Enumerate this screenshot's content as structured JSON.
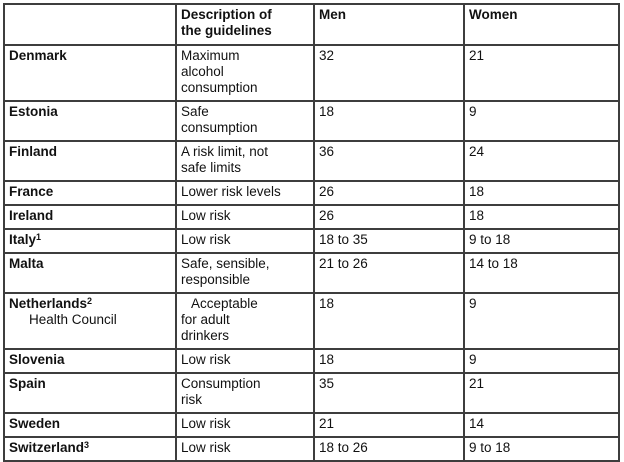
{
  "table": {
    "headers": {
      "country": "",
      "description": "Description of\nthe guidelines",
      "men": "Men",
      "women": "Women"
    },
    "rows": [
      {
        "country": "Denmark",
        "superscript": "",
        "subline": "",
        "description": "Maximum\nalcohol\nconsumption",
        "men": "32",
        "women": "21",
        "size": "tall",
        "indent_first_line": false
      },
      {
        "country": "Estonia",
        "superscript": "",
        "subline": "",
        "description": "Safe\nconsumption",
        "men": "18",
        "women": "9",
        "size": "med",
        "indent_first_line": false
      },
      {
        "country": "Finland",
        "superscript": "",
        "subline": "",
        "description": "A risk limit, not\nsafe limits",
        "men": "36",
        "women": "24",
        "size": "med",
        "indent_first_line": false
      },
      {
        "country": "France",
        "superscript": "",
        "subline": "",
        "description": "Lower risk levels",
        "men": "26",
        "women": "18",
        "size": "short",
        "indent_first_line": false
      },
      {
        "country": "Ireland",
        "superscript": "",
        "subline": "",
        "description": "Low risk",
        "men": "26",
        "women": "18",
        "size": "short",
        "indent_first_line": false
      },
      {
        "country": "Italy",
        "superscript": "1",
        "subline": "",
        "description": "Low risk",
        "men": "18 to 35",
        "women": "9 to 18",
        "size": "short",
        "indent_first_line": false
      },
      {
        "country": "Malta",
        "superscript": "",
        "subline": "",
        "description": "Safe, sensible,\nresponsible",
        "men": "21 to 26",
        "women": "14 to 18",
        "size": "med",
        "indent_first_line": false
      },
      {
        "country": "Netherlands",
        "superscript": "2",
        "subline": "Health Council",
        "description": "Acceptable\nfor adult\ndrinkers",
        "men": "18",
        "women": "9",
        "size": "tall",
        "indent_first_line": true
      },
      {
        "country": "Slovenia",
        "superscript": "",
        "subline": "",
        "description": "Low risk",
        "men": "18",
        "women": "9",
        "size": "short",
        "indent_first_line": false
      },
      {
        "country": "Spain",
        "superscript": "",
        "subline": "",
        "description": "Consumption\nrisk",
        "men": "35",
        "women": "21",
        "size": "med",
        "indent_first_line": false
      },
      {
        "country": "Sweden",
        "superscript": "",
        "subline": "",
        "description": "Low risk",
        "men": "21",
        "women": "14",
        "size": "short",
        "indent_first_line": false
      },
      {
        "country": "Switzerland",
        "superscript": "3",
        "subline": "",
        "description": "Low risk",
        "men": "18 to 26",
        "women": "9 to 18",
        "size": "short",
        "indent_first_line": false
      }
    ]
  }
}
